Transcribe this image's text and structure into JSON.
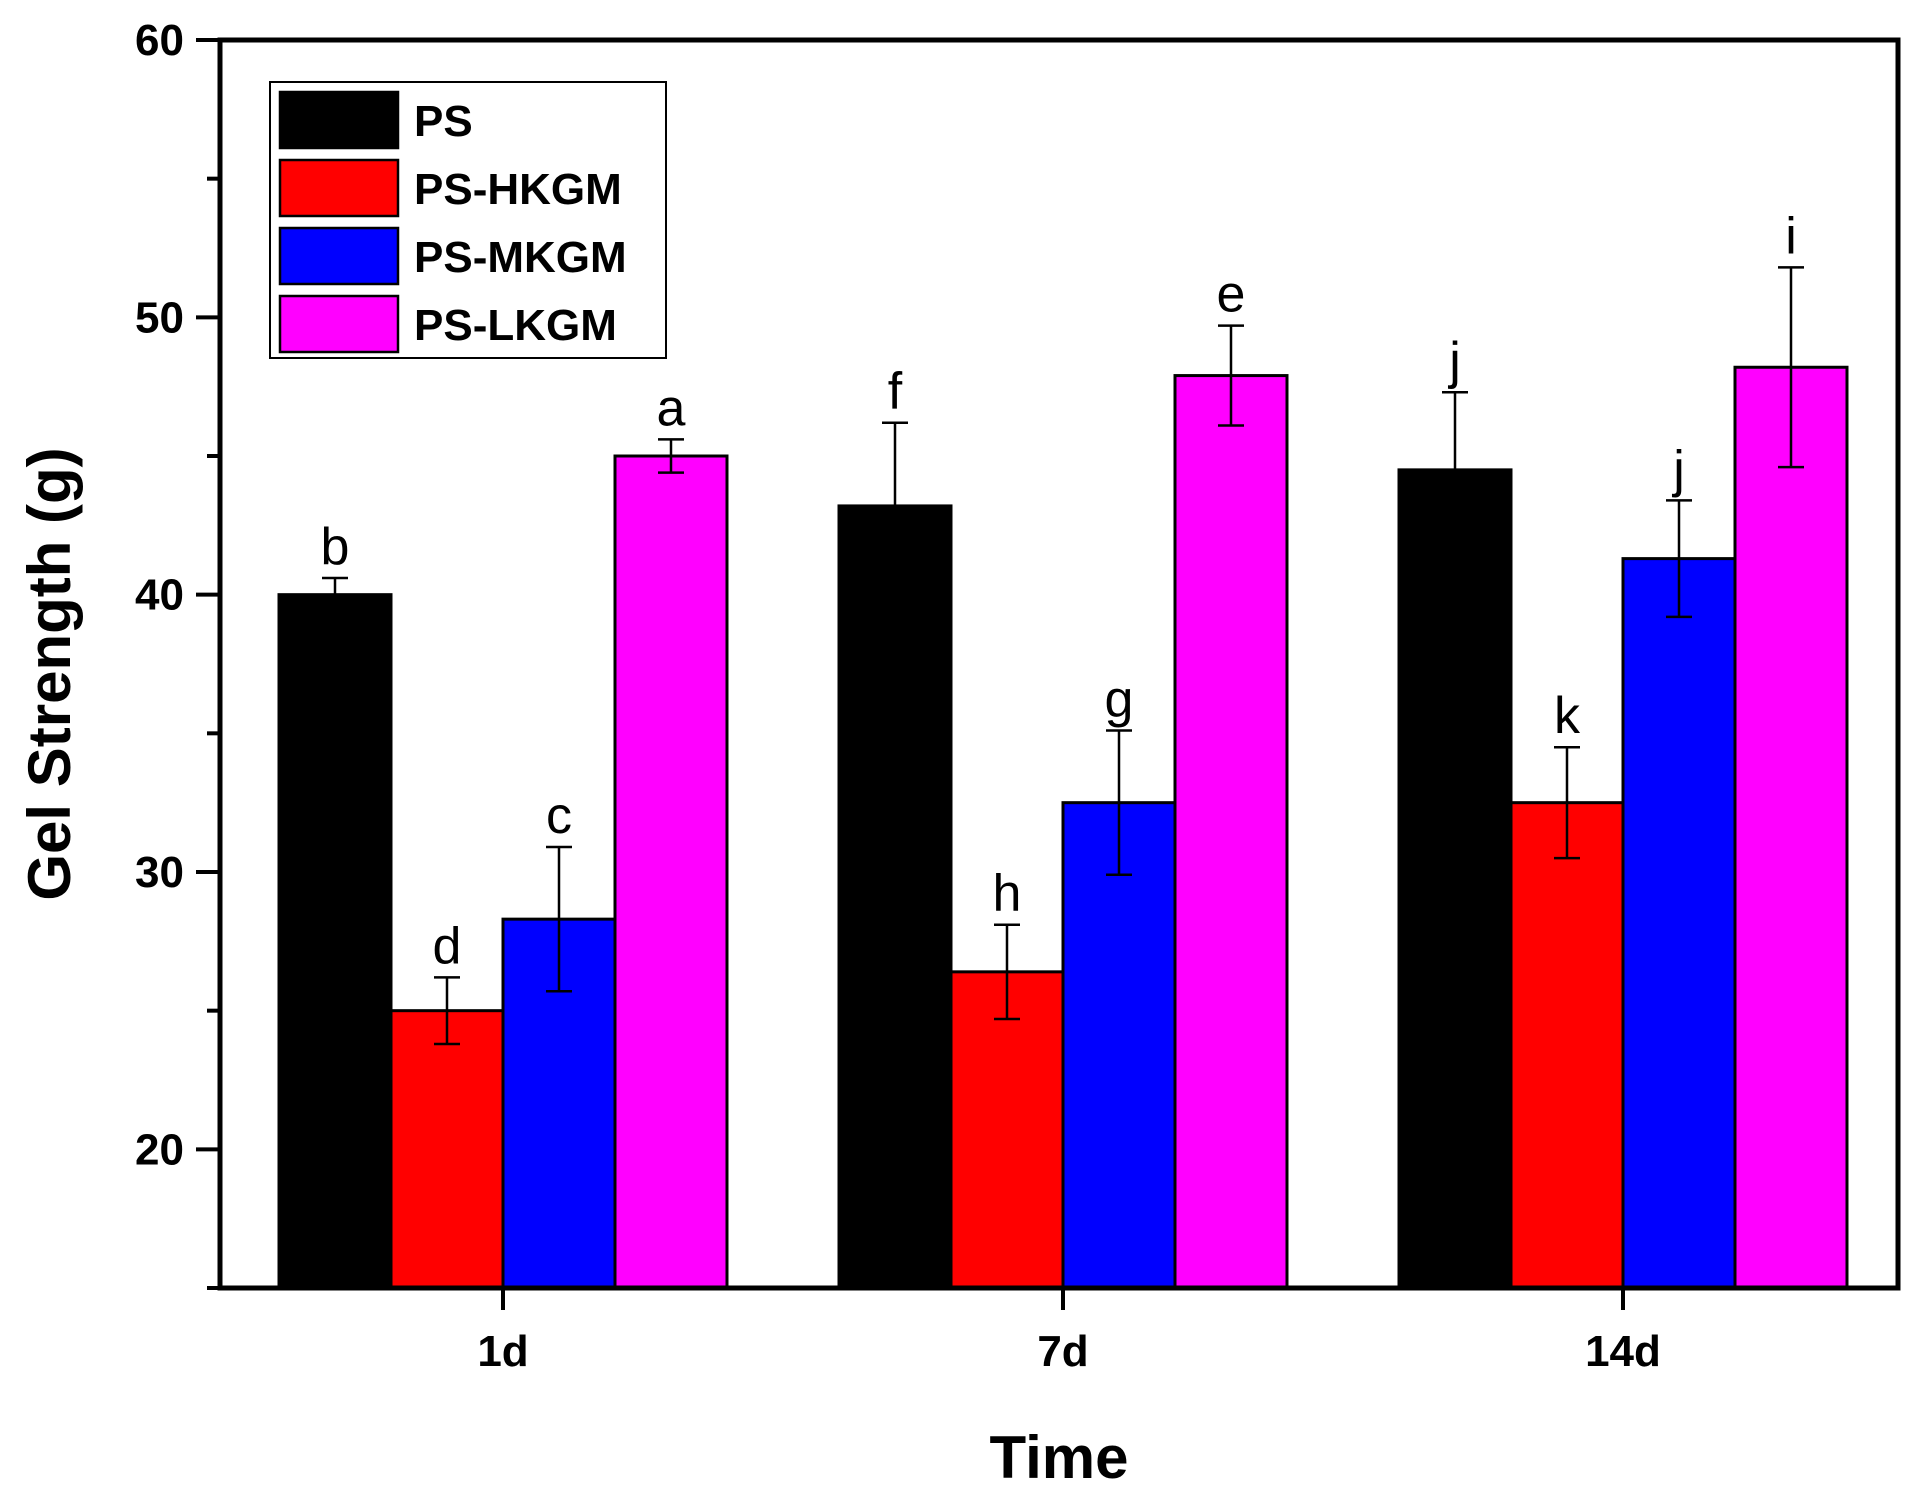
{
  "chart_data": {
    "type": "bar",
    "title": "",
    "xlabel": "Time",
    "ylabel": "Gel Strength (g)",
    "ylim": [
      15,
      60
    ],
    "yticks": [
      20,
      30,
      40,
      50,
      60
    ],
    "categories": [
      "1d",
      "7d",
      "14d"
    ],
    "legend_position": "top-left",
    "grid": false,
    "series": [
      {
        "name": "PS",
        "color": "#000000",
        "values": [
          40.0,
          43.2,
          44.5
        ],
        "errors": [
          0.6,
          3.0,
          2.8
        ],
        "labels": [
          "b",
          "f",
          "j"
        ]
      },
      {
        "name": "PS-HKGM",
        "color": "#ff0000",
        "values": [
          25.0,
          26.4,
          32.5
        ],
        "errors": [
          1.2,
          1.7,
          2.0
        ],
        "labels": [
          "d",
          "h",
          "k"
        ]
      },
      {
        "name": "PS-MKGM",
        "color": "#0000ff",
        "values": [
          28.3,
          32.5,
          41.3
        ],
        "errors": [
          2.6,
          2.6,
          2.1
        ],
        "labels": [
          "c",
          "g",
          "j"
        ]
      },
      {
        "name": "PS-LKGM",
        "color": "#ff00ff",
        "values": [
          45.0,
          47.9,
          48.2
        ],
        "errors": [
          0.6,
          1.8,
          3.6
        ],
        "labels": [
          "a",
          "e",
          "i"
        ]
      }
    ]
  }
}
